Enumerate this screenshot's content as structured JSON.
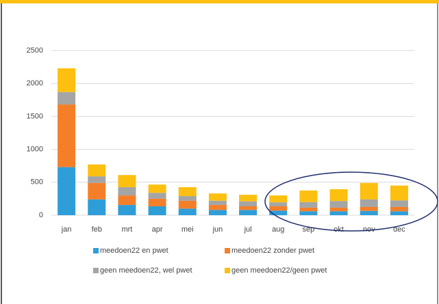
{
  "chart_data": {
    "type": "stacked_bar",
    "categories": [
      "jan",
      "feb",
      "mrt",
      "apr",
      "mei",
      "jun",
      "jul",
      "aug",
      "sep",
      "okt",
      "nov",
      "dec"
    ],
    "series": [
      {
        "name": "meedoen22 en pwet",
        "color": "#2f9ed8",
        "values": [
          730,
          240,
          155,
          135,
          100,
          80,
          80,
          70,
          60,
          60,
          65,
          60
        ]
      },
      {
        "name": "meedoen22 zonder pwet",
        "color": "#f57f29",
        "values": [
          950,
          250,
          145,
          115,
          120,
          75,
          55,
          65,
          55,
          55,
          60,
          65
        ]
      },
      {
        "name": "geen meedoen22, wel pwet",
        "color": "#a5a5a5",
        "values": [
          190,
          100,
          125,
          90,
          70,
          65,
          75,
          60,
          85,
          100,
          115,
          100
        ]
      },
      {
        "name": "geen meedoen22/geen pwet",
        "color": "#fdc010",
        "values": [
          360,
          180,
          185,
          125,
          135,
          110,
          100,
          105,
          175,
          180,
          250,
          225
        ]
      }
    ],
    "ylim": [
      0,
      2500
    ],
    "yticks": [
      0,
      500,
      1000,
      1500,
      2000,
      2500
    ],
    "grid": true
  }
}
